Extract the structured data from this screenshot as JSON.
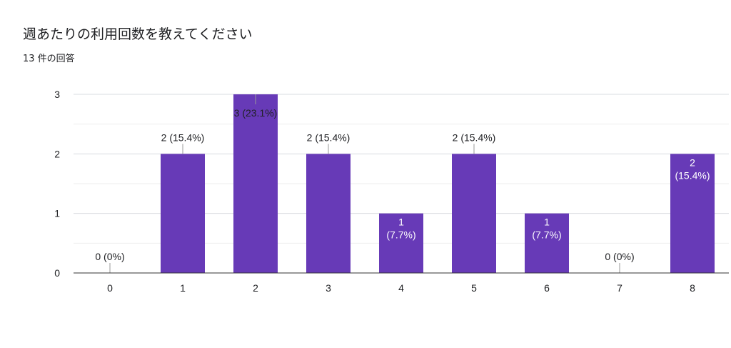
{
  "header": {
    "title": "週あたりの利用回数を教えてください",
    "response_count": "13 件の回答"
  },
  "colors": {
    "bar": "#673ab7",
    "grid": "#e0e0e0",
    "axis": "#333333",
    "text": "#202124",
    "label_on_bar": "#ffffff"
  },
  "chart_data": {
    "type": "bar",
    "categories": [
      "0",
      "1",
      "2",
      "3",
      "4",
      "5",
      "6",
      "7",
      "8"
    ],
    "values": [
      0,
      2,
      3,
      2,
      1,
      2,
      1,
      0,
      2
    ],
    "percents": [
      "0%",
      "15.4%",
      "23.1%",
      "15.4%",
      "7.7%",
      "15.4%",
      "7.7%",
      "0%",
      "15.4%"
    ],
    "data_labels": [
      [
        "0 (0%)"
      ],
      [
        "2 (15.4%)"
      ],
      [
        "3 (23.1%)"
      ],
      [
        "2 (15.4%)"
      ],
      [
        "1",
        "(7.7%)"
      ],
      [
        "2 (15.4%)"
      ],
      [
        "1",
        "(7.7%)"
      ],
      [
        "0 (0%)"
      ],
      [
        "2",
        "(15.4%)"
      ]
    ],
    "yticks": [
      "0",
      "1",
      "2",
      "3"
    ],
    "ylim": [
      0,
      3
    ],
    "grid": true,
    "legend": "none",
    "title": "",
    "xlabel": "",
    "ylabel": ""
  }
}
